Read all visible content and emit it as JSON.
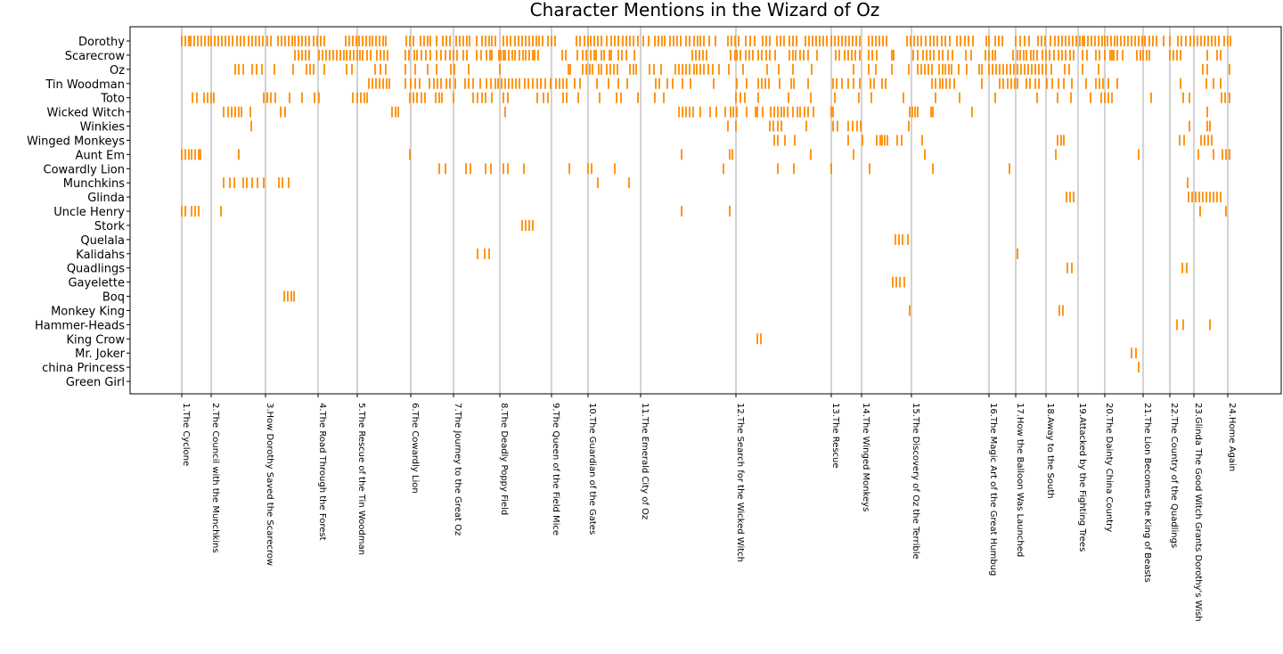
{
  "chart_data": {
    "type": "eventplot",
    "title": "Character Mentions in the Wizard of Oz",
    "xlabel": "",
    "ylabel": "",
    "xlim": [
      0,
      1292
    ],
    "grid": false,
    "colors": {
      "mention": "#ff8c00",
      "chapter_line": "#d3d3d3",
      "frame": "#000000"
    },
    "chapters": [
      {
        "label": "1.The Cyclone",
        "x": 58
      },
      {
        "label": "2.The Council with the Munchkins",
        "x": 91
      },
      {
        "label": "3.How Dorothy Saved the Scarecrow",
        "x": 152
      },
      {
        "label": "4.The Road Through the Forest",
        "x": 211
      },
      {
        "label": "5.The Rescue of the Tin Woodman",
        "x": 255
      },
      {
        "label": "6.The Cowardly Lion",
        "x": 315
      },
      {
        "label": "7.The Journey to the Great Oz",
        "x": 363
      },
      {
        "label": "8.The Deadly Poppy Field",
        "x": 415
      },
      {
        "label": "9.The Queen of the Field Mice",
        "x": 473
      },
      {
        "label": "10.The Guardian of the Gates",
        "x": 514
      },
      {
        "label": "11.The Emerald City of Oz",
        "x": 573
      },
      {
        "label": "12.The Search for the Wicked Witch",
        "x": 680
      },
      {
        "label": "13.The Rescue",
        "x": 787
      },
      {
        "label": "14.The Winged Monkeys",
        "x": 821
      },
      {
        "label": "15.The Discovery of Oz the Terrible",
        "x": 877
      },
      {
        "label": "16.The Magic Art of the Great Humbug",
        "x": 964
      },
      {
        "label": "17.How the Balloon Was Launched",
        "x": 994
      },
      {
        "label": "18.Away to the South",
        "x": 1028
      },
      {
        "label": "19.Attacked by the Fighting Trees",
        "x": 1064
      },
      {
        "label": "20.The Dainty China Country",
        "x": 1094
      },
      {
        "label": "21.The Lion Becomes the King of Beasts",
        "x": 1137
      },
      {
        "label": "22.The Country of the Quadlings",
        "x": 1167
      },
      {
        "label": "23.Glinda The Good Witch Grants Dorothy's Wish",
        "x": 1194
      },
      {
        "label": "24.Home Again",
        "x": 1232
      }
    ],
    "series": [
      {
        "name": "Dorothy",
        "mentions": [
          58,
          62,
          66,
          68,
          72,
          76,
          80,
          84,
          88,
          91,
          95,
          99,
          103,
          107,
          111,
          115,
          120,
          124,
          128,
          133,
          137,
          141,
          145,
          149,
          154,
          158,
          166,
          170,
          174,
          178,
          182,
          185,
          189,
          193,
          197,
          201,
          206,
          210,
          214,
          218,
          242,
          246,
          250,
          254,
          257,
          261,
          265,
          269,
          272,
          276,
          280,
          284,
          287,
          310,
          314,
          318,
          326,
          330,
          334,
          337,
          344,
          351,
          355,
          359,
          366,
          370,
          374,
          378,
          381,
          389,
          395,
          399,
          403,
          406,
          410,
          419,
          423,
          427,
          432,
          436,
          440,
          444,
          448,
          452,
          456,
          459,
          463,
          469,
          473,
          477,
          501,
          505,
          510,
          514,
          517,
          521,
          525,
          529,
          535,
          540,
          544,
          548,
          553,
          557,
          561,
          565,
          570,
          576,
          582,
          589,
          593,
          597,
          600,
          606,
          610,
          614,
          618,
          624,
          628,
          633,
          637,
          640,
          644,
          650,
          657,
          671,
          675,
          679,
          683,
          691,
          696,
          701,
          710,
          714,
          718,
          726,
          730,
          734,
          740,
          744,
          748,
          758,
          762,
          766,
          770,
          774,
          778,
          782,
          787,
          791,
          795,
          799,
          803,
          807,
          811,
          815,
          819,
          829,
          833,
          837,
          841,
          845,
          849,
          872,
          876,
          880,
          884,
          888,
          893,
          898,
          902,
          906,
          911,
          915,
          920,
          928,
          932,
          937,
          941,
          946,
          961,
          964,
          971,
          975,
          979,
          994,
          999,
          1004,
          1009,
          1019,
          1023,
          1027,
          1033,
          1038,
          1042,
          1046,
          1050,
          1054,
          1058,
          1062,
          1066,
          1069,
          1071,
          1075,
          1079,
          1083,
          1087,
          1091,
          1094,
          1097,
          1101,
          1105,
          1108,
          1112,
          1116,
          1120,
          1124,
          1128,
          1132,
          1136,
          1139,
          1144,
          1148,
          1152,
          1160,
          1167,
          1176,
          1180,
          1185,
          1190,
          1194,
          1198,
          1202,
          1206,
          1210,
          1214,
          1218,
          1222,
          1228,
          1232,
          1235
        ]
      },
      {
        "name": "Scarecrow",
        "mentions": [
          185,
          189,
          193,
          197,
          201,
          212,
          216,
          220,
          224,
          228,
          232,
          236,
          240,
          243,
          247,
          251,
          255,
          258,
          261,
          266,
          270,
          277,
          281,
          285,
          289,
          309,
          313,
          319,
          322,
          327,
          332,
          337,
          344,
          349,
          354,
          359,
          363,
          367,
          374,
          378,
          389,
          394,
          400,
          404,
          406,
          414,
          416,
          419,
          421,
          425,
          429,
          432,
          437,
          441,
          444,
          448,
          452,
          454,
          458,
          485,
          489,
          502,
          508,
          512,
          517,
          521,
          523,
          529,
          532,
          538,
          540,
          548,
          552,
          557,
          566,
          631,
          635,
          639,
          643,
          647,
          674,
          679,
          681,
          685,
          691,
          695,
          699,
          705,
          709,
          714,
          718,
          724,
          740,
          744,
          747,
          752,
          756,
          761,
          771,
          792,
          796,
          802,
          806,
          810,
          814,
          819,
          829,
          833,
          838,
          855,
          857,
          879,
          884,
          890,
          894,
          898,
          902,
          908,
          912,
          918,
          923,
          938,
          944,
          960,
          964,
          968,
          971,
          991,
          996,
          999,
          1003,
          1006,
          1011,
          1014,
          1018,
          1024,
          1028,
          1032,
          1037,
          1042,
          1046,
          1050,
          1055,
          1059,
          1069,
          1074,
          1084,
          1088,
          1094,
          1100,
          1102,
          1104,
          1108,
          1114,
          1130,
          1134,
          1137,
          1141,
          1144,
          1167,
          1171,
          1175,
          1179,
          1209,
          1220,
          1224
        ]
      },
      {
        "name": "Oz",
        "mentions": [
          118,
          122,
          127,
          137,
          142,
          148,
          162,
          183,
          198,
          202,
          206,
          218,
          243,
          249,
          275,
          281,
          287,
          309,
          320,
          334,
          344,
          360,
          364,
          380,
          415,
          492,
          494,
          508,
          512,
          516,
          519,
          526,
          529,
          535,
          539,
          543,
          547,
          561,
          565,
          568,
          583,
          588,
          596,
          612,
          616,
          620,
          624,
          628,
          633,
          636,
          640,
          644,
          649,
          654,
          661,
          672,
          688,
          715,
          728,
          744,
          765,
          812,
          829,
          837,
          855,
          874,
          884,
          888,
          892,
          896,
          900,
          908,
          912,
          915,
          919,
          922,
          930,
          939,
          953,
          956,
          964,
          968,
          972,
          976,
          980,
          984,
          988,
          992,
          996,
          1000,
          1004,
          1008,
          1012,
          1016,
          1020,
          1024,
          1028,
          1034,
          1049,
          1054,
          1069,
          1087,
          1204,
          1209,
          1234
        ]
      },
      {
        "name": "Tin Woodman",
        "mentions": [
          268,
          272,
          276,
          280,
          284,
          288,
          291,
          309,
          315,
          320,
          325,
          336,
          341,
          345,
          349,
          355,
          359,
          365,
          376,
          380,
          385,
          393,
          400,
          405,
          410,
          413,
          417,
          421,
          425,
          429,
          433,
          437,
          443,
          447,
          452,
          457,
          461,
          466,
          472,
          478,
          482,
          486,
          490,
          499,
          505,
          524,
          537,
          548,
          558,
          590,
          594,
          603,
          609,
          620,
          629,
          655,
          681,
          692,
          705,
          709,
          713,
          717,
          729,
          742,
          745,
          761,
          789,
          793,
          799,
          806,
          812,
          819,
          831,
          835,
          844,
          848,
          900,
          904,
          909,
          912,
          916,
          920,
          925,
          956,
          976,
          980,
          985,
          989,
          993,
          996,
          1006,
          1010,
          1016,
          1020,
          1029,
          1035,
          1042,
          1048,
          1057,
          1073,
          1084,
          1088,
          1092,
          1098,
          1108,
          1179,
          1208,
          1216,
          1224
        ]
      },
      {
        "name": "Toto",
        "mentions": [
          70,
          75,
          83,
          87,
          91,
          94,
          150,
          154,
          158,
          163,
          179,
          193,
          207,
          212,
          250,
          255,
          259,
          263,
          266,
          314,
          318,
          322,
          327,
          331,
          343,
          347,
          350,
          363,
          385,
          390,
          395,
          399,
          406,
          419,
          424,
          457,
          464,
          469,
          486,
          490,
          503,
          527,
          546,
          551,
          570,
          589,
          599,
          680,
          685,
          690,
          705,
          739,
          764,
          791,
          818,
          832,
          868,
          904,
          931,
          971,
          1018,
          1041,
          1056,
          1078,
          1090,
          1094,
          1098,
          1102,
          1146,
          1182,
          1189,
          1225,
          1229,
          1234
        ]
      },
      {
        "name": "Wicked Witch",
        "mentions": [
          105,
          110,
          114,
          118,
          122,
          125,
          135,
          169,
          174,
          294,
          298,
          301,
          421,
          616,
          620,
          624,
          628,
          632,
          640,
          651,
          658,
          668,
          674,
          677,
          681,
          692,
          702,
          704,
          710,
          719,
          723,
          727,
          731,
          734,
          738,
          744,
          749,
          752,
          757,
          761,
          767,
          787,
          789,
          875,
          878,
          881,
          884,
          899,
          901,
          945,
          1209
        ]
      },
      {
        "name": "Winkies",
        "mentions": [
          136,
          671,
          680,
          718,
          722,
          727,
          731,
          759,
          789,
          794,
          806,
          811,
          816,
          820,
          874,
          1189,
          1209,
          1212
        ]
      },
      {
        "name": "Winged Monkeys",
        "mentions": [
          723,
          727,
          735,
          746,
          806,
          822,
          838,
          842,
          844,
          847,
          850,
          861,
          866,
          889,
          1041,
          1045,
          1048,
          1178,
          1183,
          1202,
          1206,
          1210,
          1214
        ]
      },
      {
        "name": "Aunt Em",
        "mentions": [
          58,
          62,
          66,
          69,
          73,
          77,
          79,
          122,
          314,
          619,
          673,
          676,
          764,
          812,
          892,
          1039,
          1132,
          1199,
          1216,
          1226,
          1230,
          1234
        ]
      },
      {
        "name": "Cowardly Lion",
        "mentions": [
          347,
          354,
          377,
          382,
          399,
          405,
          419,
          424,
          442,
          493,
          514,
          518,
          544,
          666,
          727,
          745,
          787,
          830,
          901,
          987
        ]
      },
      {
        "name": "Munchkins",
        "mentions": [
          105,
          112,
          117,
          127,
          131,
          137,
          143,
          150,
          167,
          171,
          178,
          525,
          560,
          1187
        ]
      },
      {
        "name": "Glinda",
        "mentions": [
          1051,
          1055,
          1059,
          1188,
          1192,
          1196,
          1200,
          1204,
          1208,
          1212,
          1216,
          1220,
          1224
        ]
      },
      {
        "name": "Uncle Henry",
        "mentions": [
          58,
          62,
          69,
          73,
          77,
          102,
          619,
          673,
          1201,
          1230
        ]
      },
      {
        "name": "Stork",
        "mentions": [
          440,
          444,
          448,
          452
        ]
      },
      {
        "name": "Quelala",
        "mentions": [
          859,
          863,
          867,
          873
        ]
      },
      {
        "name": "Kalidahs",
        "mentions": [
          390,
          398,
          403,
          996
        ]
      },
      {
        "name": "Quadlings",
        "mentions": [
          1052,
          1057,
          1181,
          1186
        ]
      },
      {
        "name": "Gayelette",
        "mentions": [
          856,
          860,
          864,
          869
        ]
      },
      {
        "name": "Boq",
        "mentions": [
          173,
          177,
          181,
          184
        ]
      },
      {
        "name": "Monkey King",
        "mentions": [
          875,
          1043,
          1047
        ]
      },
      {
        "name": "Hammer-Heads",
        "mentions": [
          1175,
          1182,
          1212
        ]
      },
      {
        "name": "King Crow",
        "mentions": [
          704,
          708
        ]
      },
      {
        "name": "Mr. Joker",
        "mentions": [
          1124,
          1129
        ]
      },
      {
        "name": "china Princess",
        "mentions": [
          1132
        ]
      },
      {
        "name": "Green Girl",
        "mentions": []
      }
    ]
  }
}
